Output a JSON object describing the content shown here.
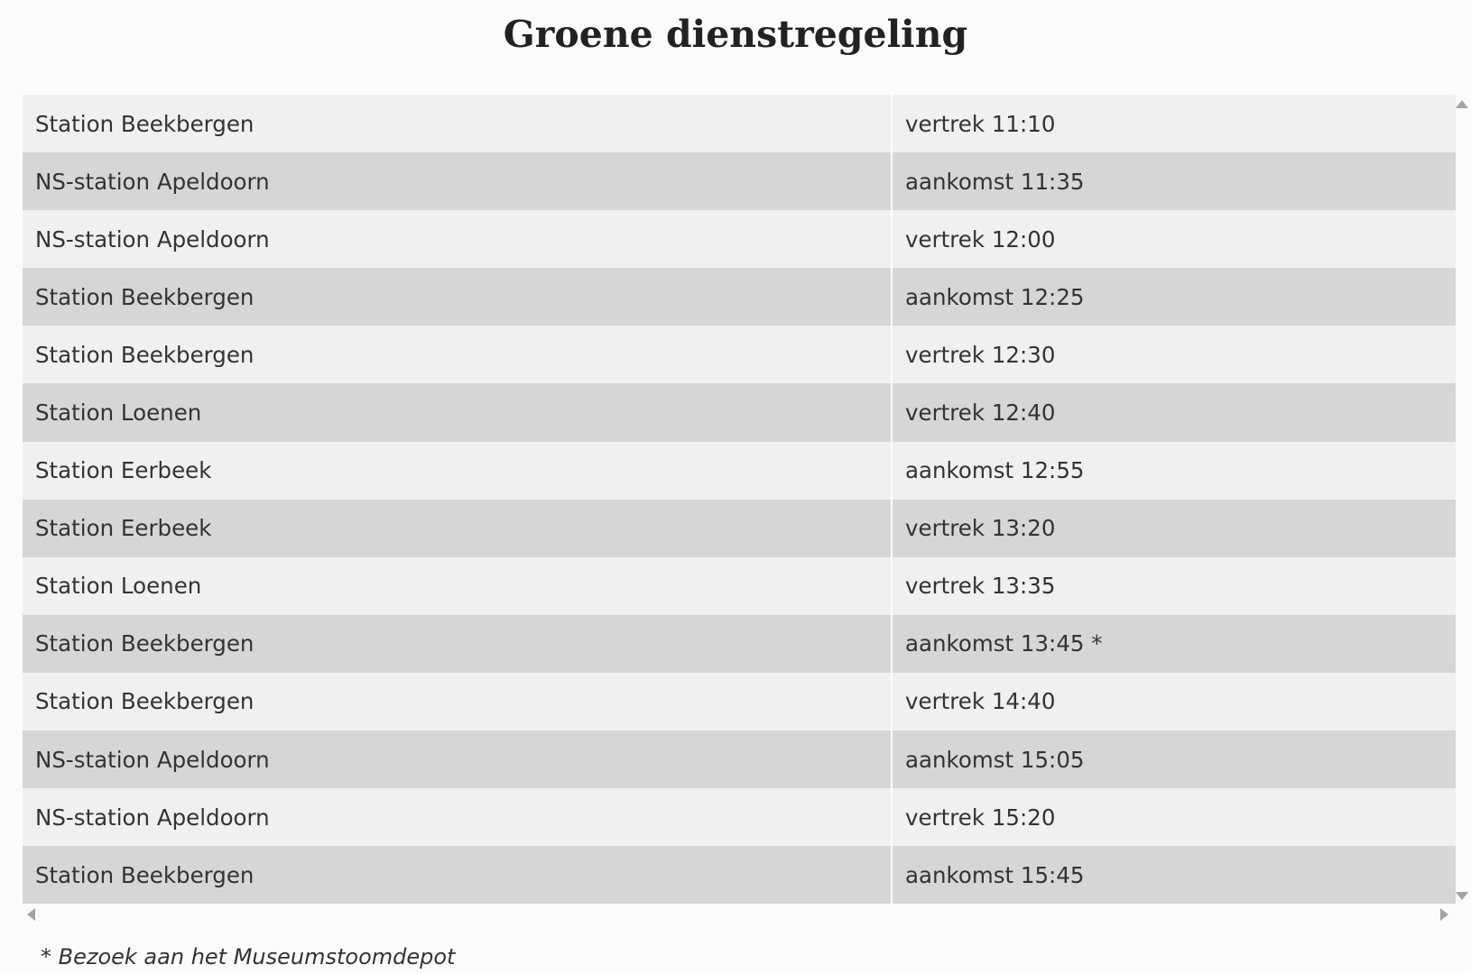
{
  "page": {
    "title": "Groene dienstregeling",
    "footnote": "* Bezoek aan het Museumstoomdepot"
  },
  "timetable": {
    "rows": [
      {
        "station": "Station Beekbergen",
        "time": "vertrek 11:10"
      },
      {
        "station": "NS-station Apeldoorn",
        "time": "aankomst 11:35"
      },
      {
        "station": "NS-station Apeldoorn",
        "time": "vertrek 12:00"
      },
      {
        "station": "Station Beekbergen",
        "time": "aankomst 12:25"
      },
      {
        "station": "Station Beekbergen",
        "time": "vertrek 12:30"
      },
      {
        "station": "Station Loenen",
        "time": "vertrek 12:40"
      },
      {
        "station": "Station Eerbeek",
        "time": "aankomst 12:55"
      },
      {
        "station": "Station Eerbeek",
        "time": "vertrek 13:20"
      },
      {
        "station": "Station Loenen",
        "time": "vertrek 13:35"
      },
      {
        "station": "Station Beekbergen",
        "time": "aankomst 13:45 *"
      },
      {
        "station": "Station Beekbergen",
        "time": "vertrek 14:40"
      },
      {
        "station": "NS-station Apeldoorn",
        "time": "aankomst 15:05"
      },
      {
        "station": "NS-station Apeldoorn",
        "time": "vertrek 15:20"
      },
      {
        "station": "Station Beekbergen",
        "time": "aankomst 15:45"
      }
    ]
  },
  "colors": {
    "row_light": "#f0f0f0",
    "row_dark": "#d6d6d6",
    "text": "#333333",
    "scroll_arrow": "#a3a3a3"
  },
  "icons": {
    "scroll_up": "scroll-up-arrow-icon",
    "scroll_down": "scroll-down-arrow-icon",
    "scroll_left": "scroll-left-arrow-icon",
    "scroll_right": "scroll-right-arrow-icon"
  }
}
